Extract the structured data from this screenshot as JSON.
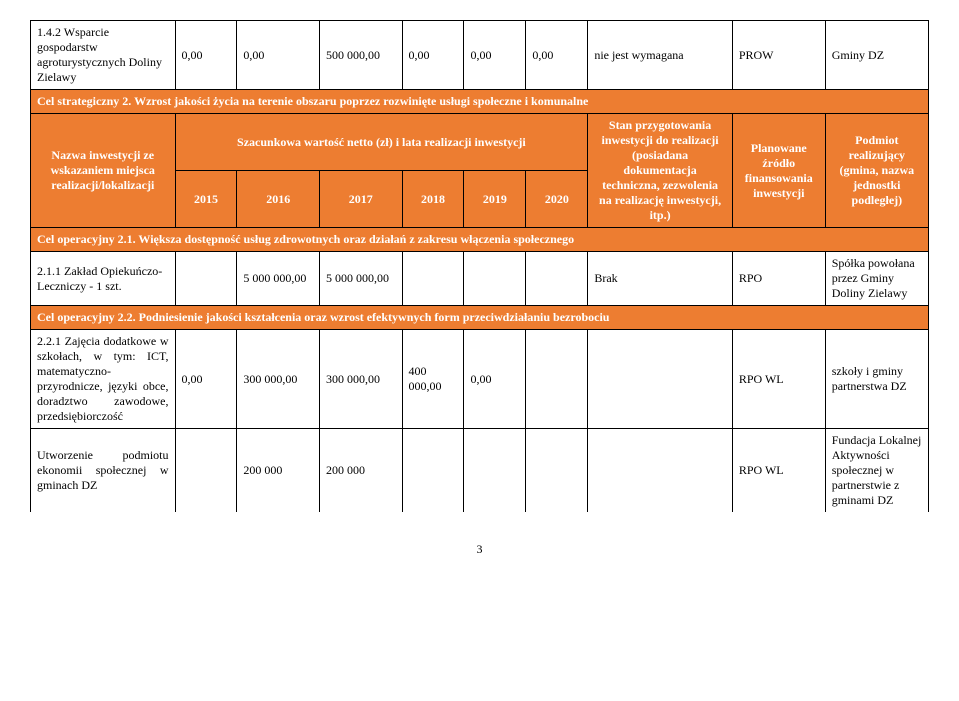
{
  "row_1_4_2": {
    "name": "1.4.2 Wsparcie gospodarstw agroturystycznych Doliny Zielawy",
    "c1": "0,00",
    "c2": "0,00",
    "c3": "500 000,00",
    "c4": "0,00",
    "c5": "0,00",
    "c6": "0,00",
    "stan": "nie jest wymagana",
    "plan": "PROW",
    "pod": "Gminy DZ"
  },
  "cel_strat_2": "Cel strategiczny 2. Wzrost jakości życia na terenie obszaru poprzez rozwinięte usługi społeczne i komunalne",
  "header": {
    "name": "Nazwa inwestycji ze wskazaniem miejsca realizacji/lokalizacji",
    "szac": "Szacunkowa wartość netto (zł) i lata realizacji inwestycji",
    "y2015": "2015",
    "y2016": "2016",
    "y2017": "2017",
    "y2018": "2018",
    "y2019": "2019",
    "y2020": "2020",
    "stan": "Stan przygotowania inwestycji do realizacji (posiadana dokumentacja techniczna, zezwolenia na realizację inwestycji, itp.)",
    "plan": "Planowane źródło finansowania inwestycji",
    "pod": "Podmiot realizujący (gmina, nazwa jednostki podległej)"
  },
  "cel_op_2_1": "Cel operacyjny 2.1. Większa dostępność usług zdrowotnych oraz działań z zakresu włączenia społecznego",
  "row_2_1_1": {
    "name": "2.1.1 Zakład Opiekuńczo-Leczniczy - 1 szt.",
    "c1": "",
    "c2": "5 000 000,00",
    "c3": "5 000 000,00",
    "c4": "",
    "c5": "",
    "c6": "",
    "stan": "Brak",
    "plan": "RPO",
    "pod": "Spółka powołana przez Gminy Doliny Zielawy"
  },
  "cel_op_2_2": "Cel operacyjny 2.2. Podniesienie jakości kształcenia oraz wzrost efektywnych form przeciwdziałaniu bezrobociu",
  "row_2_2_1": {
    "name": "2.2.1 Zajęcia dodatkowe w szkołach, w tym: ICT, matematyczno-przyrodnicze, języki obce, doradztwo zawodowe, przedsiębiorczość",
    "c1": "0,00",
    "c2": "300 000,00",
    "c3": "300 000,00",
    "c4": "400 000,00",
    "c5": "0,00",
    "c6": "",
    "stan": "",
    "plan": "RPO WL",
    "pod": "szkoły i gminy partnerstwa DZ"
  },
  "row_utworzenie": {
    "name": "Utworzenie podmiotu ekonomii społecznej w gminach DZ",
    "c1": "",
    "c2": "200 000",
    "c3": "200 000",
    "c4": "",
    "c5": "",
    "c6": "",
    "stan": "",
    "plan": "RPO WL",
    "pod": "Fundacja Lokalnej Aktywności społecznej w partnerstwie z gminami DZ"
  },
  "page_num": "3"
}
